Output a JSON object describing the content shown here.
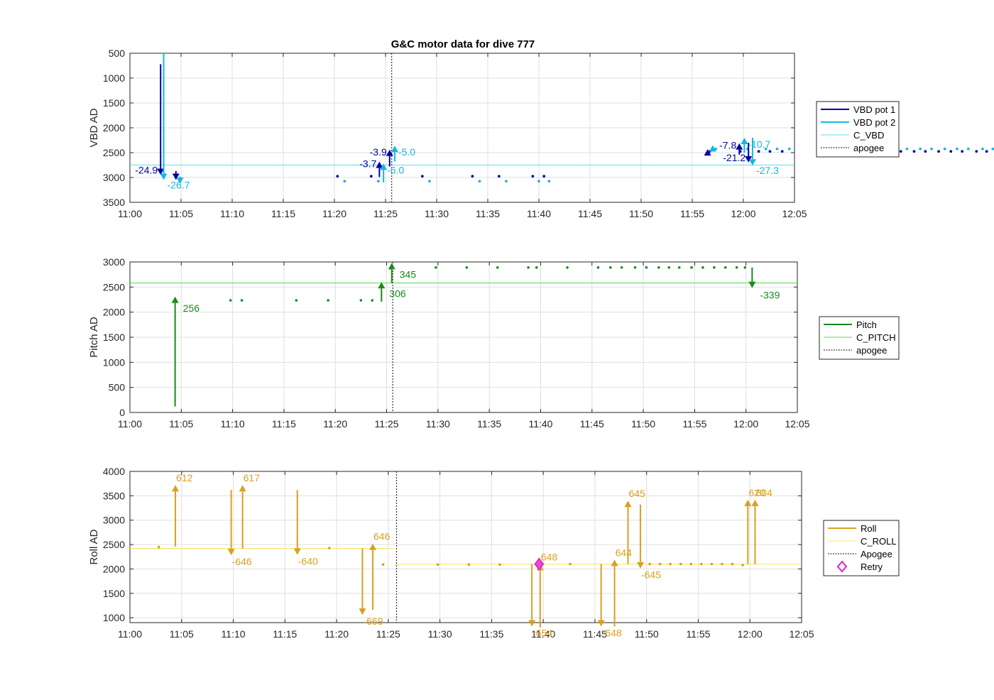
{
  "title": "G&C motor data for dive 777",
  "x_ticks": [
    "11:00",
    "11:05",
    "11:10",
    "11:15",
    "11:20",
    "11:25",
    "11:30",
    "11:35",
    "11:40",
    "11:45",
    "11:50",
    "11:55",
    "12:00",
    "12:05"
  ],
  "chart_data": [
    {
      "type": "line",
      "name": "vbd",
      "ylabel": "VBD AD",
      "ylim": [
        3500,
        500
      ],
      "y_reversed": true,
      "xlim": [
        "11:00",
        "12:05"
      ],
      "yticks": [
        "500",
        "1000",
        "1500",
        "2000",
        "2500",
        "3000",
        "3500"
      ],
      "grid": true,
      "legend_position": "right",
      "legend": [
        {
          "label": "VBD pot 1",
          "color": "#0000a8",
          "style": "solid-thick"
        },
        {
          "label": "VBD pot 2",
          "color": "#17b7e0",
          "style": "solid-thick"
        },
        {
          "label": "C_VBD",
          "color": "#5fe0e8",
          "style": "solid-thin"
        },
        {
          "label": "apogee",
          "color": "#404040",
          "style": "dotted"
        }
      ],
      "reference_line": {
        "name": "C_VBD",
        "y": 2750,
        "color": "#5fe0e8"
      },
      "apogee_min": 25.6,
      "pot1_dots": [
        [
          20.3,
          2975
        ],
        [
          23.6,
          2975
        ],
        [
          28.6,
          2975
        ],
        [
          33.5,
          2975
        ],
        [
          36.1,
          2975
        ],
        [
          39.4,
          2975
        ],
        [
          40.5,
          2975
        ],
        [
          56.7,
          2475
        ],
        [
          59.7,
          2475
        ],
        [
          61.5,
          2475
        ],
        [
          62.6,
          2475
        ],
        [
          63.8,
          2475
        ],
        [
          67.4,
          2475
        ],
        [
          70.5,
          2475
        ],
        [
          73.1,
          2475
        ],
        [
          74.3,
          2475
        ],
        [
          75.4,
          2475
        ],
        [
          76.7,
          2475
        ],
        [
          77.8,
          2475
        ],
        [
          79.1,
          2475
        ],
        [
          80.3,
          2475
        ],
        [
          81.4,
          2475
        ],
        [
          82.8,
          2475
        ],
        [
          83.8,
          2475
        ],
        [
          85.2,
          2475
        ],
        [
          86.3,
          2475
        ]
      ],
      "pot2_dots": [
        [
          21.0,
          3075
        ],
        [
          24.3,
          3075
        ],
        [
          29.3,
          3075
        ],
        [
          34.2,
          3075
        ],
        [
          36.8,
          3075
        ],
        [
          40.0,
          3075
        ],
        [
          41.0,
          3075
        ],
        [
          57.3,
          2425
        ],
        [
          60.4,
          2425
        ],
        [
          62.2,
          2425
        ],
        [
          63.3,
          2425
        ],
        [
          64.5,
          2425
        ],
        [
          68.0,
          2425
        ],
        [
          71.1,
          2425
        ],
        [
          73.7,
          2425
        ],
        [
          74.9,
          2425
        ],
        [
          76.0,
          2425
        ],
        [
          77.3,
          2425
        ],
        [
          78.4,
          2425
        ],
        [
          79.7,
          2425
        ],
        [
          80.9,
          2425
        ],
        [
          82.0,
          2425
        ],
        [
          83.4,
          2425
        ],
        [
          84.4,
          2425
        ],
        [
          85.8,
          2425
        ],
        [
          86.9,
          2425
        ]
      ],
      "moves": [
        {
          "series": "VBD pot 1",
          "color": "#0000a8",
          "t": 3.0,
          "y0": 720,
          "y1": 2950,
          "label": "-24.9"
        },
        {
          "series": "VBD pot 2",
          "color": "#17b7e0",
          "t": 3.3,
          "y0": 500,
          "y1": 3050,
          "label": "-26.7"
        },
        {
          "series": "VBD pot 1",
          "color": "#0000a8",
          "t": 4.5,
          "y0": 2870,
          "y1": 3050,
          "label": ""
        },
        {
          "series": "VBD pot 2",
          "color": "#17b7e0",
          "t": 4.9,
          "y0": 2980,
          "y1": 3130,
          "label": ""
        },
        {
          "series": "VBD pot 1",
          "color": "#0000a8",
          "t": 24.4,
          "y0": 2990,
          "y1": 2680,
          "label": "-3.7"
        },
        {
          "series": "VBD pot 2",
          "color": "#17b7e0",
          "t": 24.8,
          "y0": 3100,
          "y1": 2720,
          "label": "-6.0"
        },
        {
          "series": "VBD pot 1",
          "color": "#0000a8",
          "t": 25.4,
          "y0": 2780,
          "y1": 2440,
          "label": "-3.9"
        },
        {
          "series": "VBD pot 2",
          "color": "#17b7e0",
          "t": 25.9,
          "y0": 2680,
          "y1": 2360,
          "label": "-5.0"
        },
        {
          "series": "VBD pot 1",
          "color": "#0000a8",
          "t": 56.5,
          "y0": 2490,
          "y1": 2430,
          "label": ""
        },
        {
          "series": "VBD pot 2",
          "color": "#17b7e0",
          "t": 57.0,
          "y0": 2470,
          "y1": 2350,
          "label": ""
        },
        {
          "series": "VBD pot 1",
          "color": "#0000a8",
          "t": 59.6,
          "y0": 2540,
          "y1": 2310,
          "label": "-7.8"
        },
        {
          "series": "VBD pot 2",
          "color": "#17b7e0",
          "t": 60.1,
          "y0": 2500,
          "y1": 2200,
          "label": "-10.7"
        },
        {
          "series": "VBD pot 1",
          "color": "#0000a8",
          "t": 60.5,
          "y0": 2300,
          "y1": 2700,
          "label": "-21.2"
        },
        {
          "series": "VBD pot 2",
          "color": "#17b7e0",
          "t": 60.9,
          "y0": 2200,
          "y1": 2760,
          "label": "-27.3"
        }
      ]
    },
    {
      "type": "line",
      "name": "pitch",
      "ylabel": "Pitch AD",
      "ylim": [
        0,
        3000
      ],
      "xlim": [
        "11:00",
        "12:05"
      ],
      "yticks": [
        "0",
        "500",
        "1000",
        "1500",
        "2000",
        "2500",
        "3000"
      ],
      "grid": true,
      "legend_position": "right",
      "legend": [
        {
          "label": "Pitch",
          "color": "#1a8a1a",
          "style": "solid-thick"
        },
        {
          "label": "C_PITCH",
          "color": "#4fdc4f",
          "style": "solid-thin"
        },
        {
          "label": "apogee",
          "color": "#404040",
          "style": "dotted"
        }
      ],
      "reference_line": {
        "name": "C_PITCH",
        "y": 2580,
        "color": "#4fdc4f"
      },
      "apogee_min": 25.6,
      "dots": [
        [
          9.8,
          2235
        ],
        [
          10.9,
          2235
        ],
        [
          16.2,
          2235
        ],
        [
          19.3,
          2235
        ],
        [
          22.5,
          2235
        ],
        [
          23.6,
          2235
        ],
        [
          29.8,
          2890
        ],
        [
          32.8,
          2890
        ],
        [
          35.8,
          2890
        ],
        [
          38.8,
          2890
        ],
        [
          39.6,
          2890
        ],
        [
          42.6,
          2890
        ],
        [
          45.6,
          2890
        ],
        [
          46.8,
          2890
        ],
        [
          47.9,
          2890
        ],
        [
          49.2,
          2890
        ],
        [
          50.3,
          2890
        ],
        [
          51.5,
          2890
        ],
        [
          52.5,
          2890
        ],
        [
          53.5,
          2890
        ],
        [
          54.7,
          2890
        ],
        [
          55.8,
          2890
        ],
        [
          56.9,
          2890
        ],
        [
          58.0,
          2890
        ],
        [
          59.1,
          2890
        ],
        [
          59.9,
          2890
        ]
      ],
      "moves": [
        {
          "t": 4.4,
          "y0": 120,
          "y1": 2310,
          "label": "256"
        },
        {
          "t": 24.5,
          "y0": 2210,
          "y1": 2600,
          "label": "306"
        },
        {
          "t": 25.5,
          "y0": 2580,
          "y1": 2980,
          "label": "345"
        },
        {
          "t": 60.6,
          "y0": 2890,
          "y1": 2480,
          "label": "-339"
        }
      ]
    },
    {
      "type": "line",
      "name": "roll",
      "ylabel": "Roll AD",
      "ylim": [
        900,
        4000
      ],
      "xlim": [
        "11:00",
        "12:05"
      ],
      "yticks": [
        "1000",
        "1500",
        "2000",
        "2500",
        "3000",
        "3500",
        "4000"
      ],
      "grid": true,
      "legend_position": "right",
      "legend": [
        {
          "label": "Roll",
          "color": "#d9a020",
          "style": "solid-thick"
        },
        {
          "label": "C_ROLL",
          "color": "#f5e56a",
          "style": "solid-thin"
        },
        {
          "label": "Apogee",
          "color": "#404040",
          "style": "dotted"
        },
        {
          "label": "Retry",
          "color": "#e020d0",
          "style": "diamond"
        }
      ],
      "reference_line_segments": [
        {
          "t0": 0,
          "t1": 25.6,
          "y": 2420
        },
        {
          "t0": 25.6,
          "t1": 65,
          "y": 2100
        }
      ],
      "apogee_min": 25.8,
      "dots": [
        [
          2.8,
          2450
        ],
        [
          19.3,
          2430
        ],
        [
          24.5,
          2090
        ],
        [
          29.8,
          2090
        ],
        [
          32.8,
          2090
        ],
        [
          35.8,
          2090
        ],
        [
          42.6,
          2100
        ],
        [
          50.3,
          2100
        ],
        [
          51.3,
          2100
        ],
        [
          52.3,
          2100
        ],
        [
          53.3,
          2100
        ],
        [
          54.3,
          2100
        ],
        [
          55.3,
          2100
        ],
        [
          56.3,
          2100
        ],
        [
          57.3,
          2100
        ],
        [
          58.3,
          2100
        ],
        [
          59.3,
          2080
        ]
      ],
      "retry": [
        {
          "t": 39.6,
          "y": 2100
        }
      ],
      "moves": [
        {
          "t": 4.4,
          "y0": 2460,
          "y1": 3720,
          "label": "612"
        },
        {
          "t": 9.8,
          "y0": 3620,
          "y1": 2280,
          "label": "-646"
        },
        {
          "t": 10.9,
          "y0": 2420,
          "y1": 3720,
          "label": "617"
        },
        {
          "t": 16.2,
          "y0": 3620,
          "y1": 2290,
          "label": "-640"
        },
        {
          "t": 22.5,
          "y0": 2420,
          "y1": 1060,
          "label": "-669"
        },
        {
          "t": 23.5,
          "y0": 1160,
          "y1": 2520,
          "label": "646"
        },
        {
          "t": 38.9,
          "y0": 2100,
          "y1": 820,
          "label": "-654"
        },
        {
          "t": 39.7,
          "y0": 800,
          "y1": 2100,
          "label": "648"
        },
        {
          "t": 45.6,
          "y0": 2100,
          "y1": 820,
          "label": "-648"
        },
        {
          "t": 46.9,
          "y0": 820,
          "y1": 2190,
          "label": "644"
        },
        {
          "t": 48.2,
          "y0": 2100,
          "y1": 3400,
          "label": "645"
        },
        {
          "t": 49.4,
          "y0": 3320,
          "y1": 2010,
          "label": "-645"
        },
        {
          "t": 59.8,
          "y0": 2100,
          "y1": 3420,
          "label": "620"
        },
        {
          "t": 60.5,
          "y0": 2100,
          "y1": 3420,
          "label": "604"
        }
      ]
    }
  ]
}
